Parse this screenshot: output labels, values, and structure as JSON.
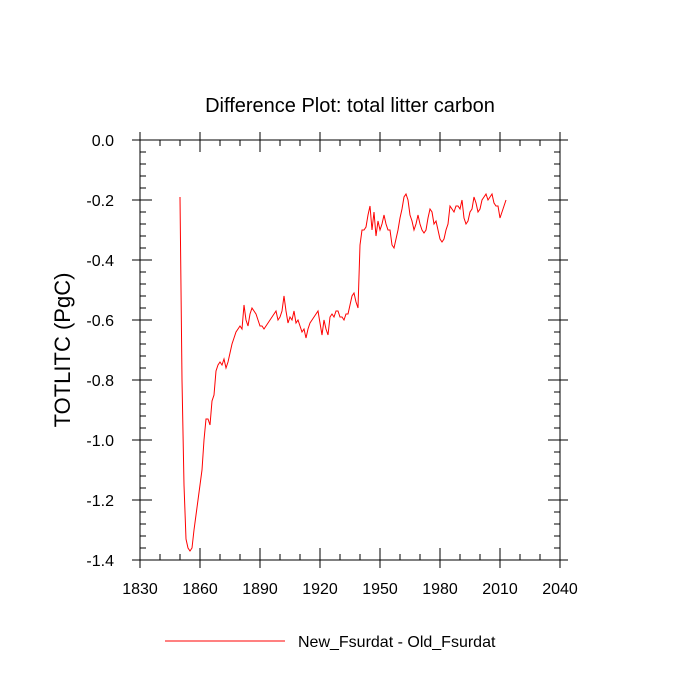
{
  "chart_data": {
    "type": "line",
    "title": "Difference Plot: total litter carbon",
    "xlabel": "",
    "ylabel": "TOTLITC  (PgC)",
    "xlim": [
      1830,
      2040
    ],
    "ylim": [
      -1.4,
      0.0
    ],
    "xticks": [
      1830,
      1860,
      1890,
      1920,
      1950,
      1980,
      2010,
      2040
    ],
    "xtick_labels": [
      "1830",
      "1860",
      "1890",
      "1920",
      "1950",
      "1980",
      "2010",
      "2040"
    ],
    "yticks": [
      0.0,
      -0.2,
      -0.4,
      -0.6,
      -0.8,
      -1.0,
      -1.2,
      -1.4
    ],
    "ytick_labels": [
      "0.0",
      "-0.2",
      "-0.4",
      "-0.6",
      "-0.8",
      "-1.0",
      "-1.2",
      "-1.4"
    ],
    "grid": false,
    "legend_position": "bottom-center",
    "colors": {
      "series": "#ff0000",
      "axis": "#000000"
    },
    "series": [
      {
        "name": "New_Fsurdat - Old_Fsurdat",
        "x": [
          1850,
          1851,
          1852,
          1853,
          1854,
          1855,
          1856,
          1857,
          1858,
          1859,
          1860,
          1861,
          1862,
          1863,
          1864,
          1865,
          1866,
          1867,
          1868,
          1869,
          1870,
          1871,
          1872,
          1873,
          1874,
          1875,
          1876,
          1877,
          1878,
          1879,
          1880,
          1881,
          1882,
          1883,
          1884,
          1885,
          1886,
          1887,
          1888,
          1889,
          1890,
          1891,
          1892,
          1893,
          1894,
          1895,
          1896,
          1897,
          1898,
          1899,
          1900,
          1901,
          1902,
          1903,
          1904,
          1905,
          1906,
          1907,
          1908,
          1909,
          1910,
          1911,
          1912,
          1913,
          1914,
          1915,
          1916,
          1917,
          1918,
          1919,
          1920,
          1921,
          1922,
          1923,
          1924,
          1925,
          1926,
          1927,
          1928,
          1929,
          1930,
          1931,
          1932,
          1933,
          1934,
          1935,
          1936,
          1937,
          1938,
          1939,
          1940,
          1941,
          1942,
          1943,
          1944,
          1945,
          1946,
          1947,
          1948,
          1949,
          1950,
          1951,
          1952,
          1953,
          1954,
          1955,
          1956,
          1957,
          1958,
          1959,
          1960,
          1961,
          1962,
          1963,
          1964,
          1965,
          1966,
          1967,
          1968,
          1969,
          1970,
          1971,
          1972,
          1973,
          1974,
          1975,
          1976,
          1977,
          1978,
          1979,
          1980,
          1981,
          1982,
          1983,
          1984,
          1985,
          1986,
          1987,
          1988,
          1989,
          1990,
          1991,
          1992,
          1993,
          1994,
          1995,
          1996,
          1997,
          1998,
          1999,
          2000,
          2001,
          2002,
          2003,
          2004,
          2005,
          2006,
          2007,
          2008,
          2009,
          2010,
          2011,
          2012,
          2013
        ],
        "values": [
          -0.19,
          -0.8,
          -1.15,
          -1.33,
          -1.36,
          -1.37,
          -1.36,
          -1.3,
          -1.25,
          -1.2,
          -1.15,
          -1.1,
          -1.0,
          -0.93,
          -0.93,
          -0.95,
          -0.87,
          -0.85,
          -0.77,
          -0.75,
          -0.74,
          -0.75,
          -0.73,
          -0.76,
          -0.74,
          -0.71,
          -0.68,
          -0.66,
          -0.64,
          -0.63,
          -0.62,
          -0.63,
          -0.55,
          -0.6,
          -0.62,
          -0.58,
          -0.56,
          -0.57,
          -0.58,
          -0.6,
          -0.62,
          -0.62,
          -0.63,
          -0.62,
          -0.61,
          -0.6,
          -0.59,
          -0.58,
          -0.57,
          -0.6,
          -0.59,
          -0.57,
          -0.52,
          -0.57,
          -0.61,
          -0.59,
          -0.6,
          -0.57,
          -0.61,
          -0.6,
          -0.62,
          -0.64,
          -0.63,
          -0.66,
          -0.63,
          -0.61,
          -0.6,
          -0.59,
          -0.58,
          -0.57,
          -0.61,
          -0.65,
          -0.6,
          -0.63,
          -0.65,
          -0.59,
          -0.58,
          -0.59,
          -0.57,
          -0.57,
          -0.59,
          -0.59,
          -0.6,
          -0.58,
          -0.58,
          -0.55,
          -0.52,
          -0.51,
          -0.54,
          -0.56,
          -0.35,
          -0.3,
          -0.3,
          -0.29,
          -0.25,
          -0.22,
          -0.3,
          -0.24,
          -0.32,
          -0.27,
          -0.3,
          -0.28,
          -0.25,
          -0.28,
          -0.3,
          -0.3,
          -0.35,
          -0.36,
          -0.33,
          -0.3,
          -0.26,
          -0.23,
          -0.19,
          -0.18,
          -0.2,
          -0.25,
          -0.27,
          -0.3,
          -0.28,
          -0.25,
          -0.28,
          -0.3,
          -0.31,
          -0.3,
          -0.26,
          -0.23,
          -0.24,
          -0.28,
          -0.27,
          -0.3,
          -0.33,
          -0.34,
          -0.33,
          -0.3,
          -0.28,
          -0.22,
          -0.23,
          -0.24,
          -0.22,
          -0.22,
          -0.23,
          -0.2,
          -0.26,
          -0.28,
          -0.27,
          -0.24,
          -0.23,
          -0.19,
          -0.21,
          -0.24,
          -0.23,
          -0.2,
          -0.19,
          -0.18,
          -0.2,
          -0.19,
          -0.18,
          -0.21,
          -0.22,
          -0.22,
          -0.26,
          -0.24,
          -0.22,
          -0.2
        ]
      }
    ]
  }
}
